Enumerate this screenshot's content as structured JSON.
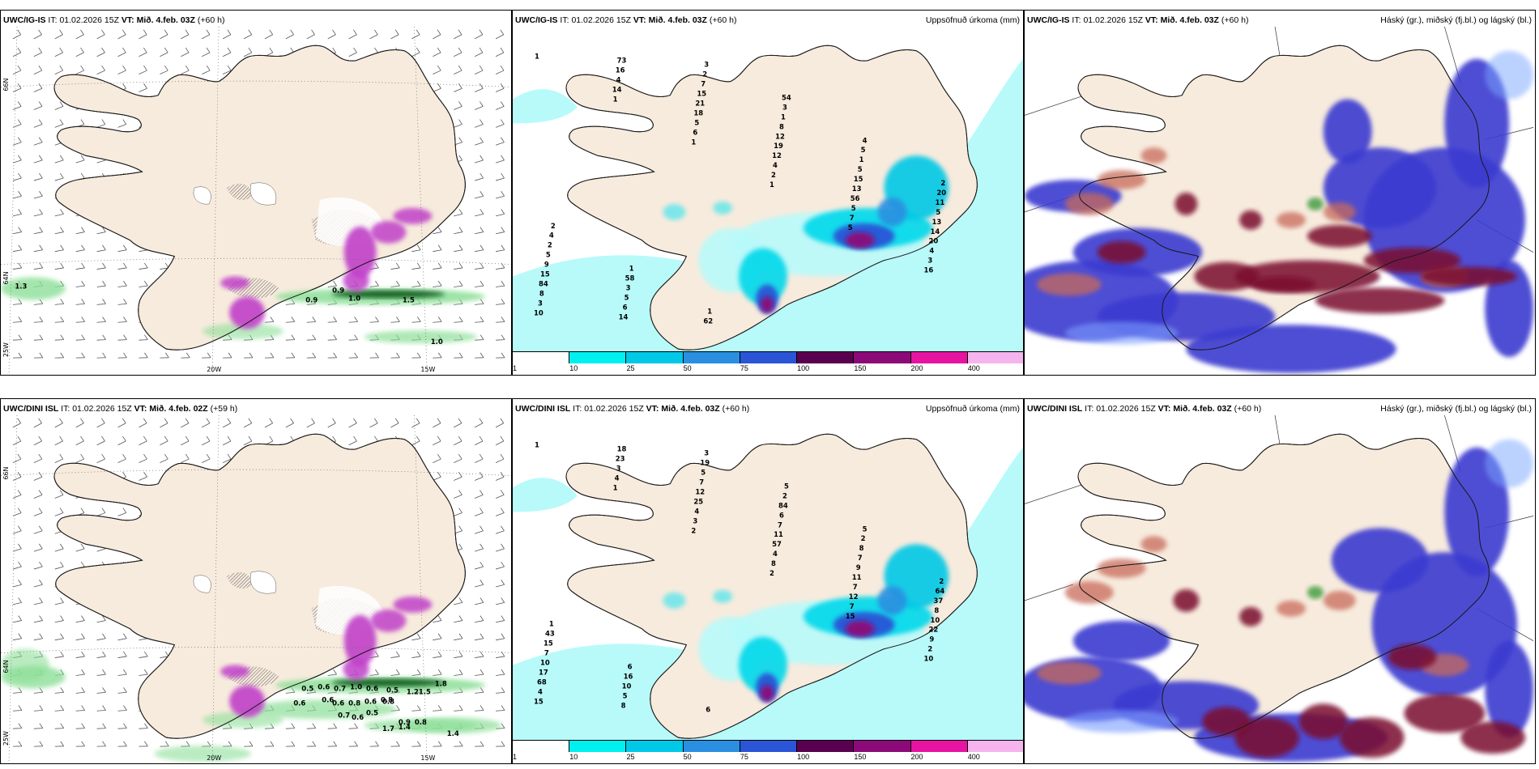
{
  "panels": [
    {
      "id": "p1",
      "model": "UWC/IG-IS",
      "it_label": "IT:",
      "it": "01.02.2026 15Z",
      "vt_label": "VT:",
      "vt": "Mið. 4.feb. 03Z",
      "lead": "(+60 h)",
      "right": ""
    },
    {
      "id": "p2",
      "model": "UWC/IG-IS",
      "it_label": "IT:",
      "it": "01.02.2026 15Z",
      "vt_label": "VT:",
      "vt": "Mið. 4.feb. 03Z",
      "lead": "(+60 h)",
      "right": "Uppsöfnuð úrkoma (mm)"
    },
    {
      "id": "p3",
      "model": "UWC/IG-IS",
      "it_label": "IT:",
      "it": "01.02.2026 15Z",
      "vt_label": "VT:",
      "vt": "Mið. 4.feb. 03Z",
      "lead": "(+60 h)",
      "right": "Háský (gr.), miðský (fj.bl.) og lágský (bl.)"
    },
    {
      "id": "p4",
      "model": "UWC/DINI ISL",
      "it_label": "IT:",
      "it": "01.02.2026 15Z",
      "vt_label": "VT:",
      "vt": "Mið. 4.feb. 02Z",
      "lead": "(+59 h)",
      "right": ""
    },
    {
      "id": "p5",
      "model": "UWC/DINI ISL",
      "it_label": "IT:",
      "it": "01.02.2026 15Z",
      "vt_label": "VT:",
      "vt": "Mið. 4.feb. 03Z",
      "lead": "(+60 h)",
      "right": "Uppsöfnuð úrkoma (mm)"
    },
    {
      "id": "p6",
      "model": "UWC/DINI ISL",
      "it_label": "IT:",
      "it": "01.02.2026 15Z",
      "vt_label": "VT:",
      "vt": "Mið. 4.feb. 03Z",
      "lead": "(+60 h)",
      "right": "Háský (gr.), miðský (fj.bl.) og lágský (bl.)"
    }
  ],
  "axis_labels": {
    "lat66": "66N",
    "lat64": "64N",
    "lon25": "25W",
    "lon20": "20W",
    "lon15": "15W"
  },
  "colorbar": {
    "ticks": [
      "1",
      "10",
      "25",
      "50",
      "75",
      "100",
      "150",
      "200",
      "400"
    ],
    "colors": [
      "#ffffff",
      "#00f0f0",
      "#00c8e6",
      "#2a8fe0",
      "#2a55d6",
      "#5a0050",
      "#8c0a78",
      "#e614a0",
      "#f6b4ee"
    ]
  },
  "precip_labels_ig": [
    "1",
    "1",
    "1",
    "1",
    "5",
    "16",
    "10",
    "14",
    "6",
    "2",
    "7",
    "3",
    "3",
    "4",
    "5",
    "4",
    "5",
    "4",
    "8",
    "16",
    "18",
    "12",
    "56",
    "20",
    "84",
    "73",
    "21",
    "19",
    "13",
    "14",
    "15",
    "14",
    "15",
    "12",
    "15",
    "13",
    "9",
    "6",
    "7",
    "8",
    "5",
    "5",
    "5",
    "5",
    "2",
    "1",
    "1",
    "11",
    "2",
    "3",
    "3",
    "3",
    "5",
    "20",
    "4",
    "58",
    "62",
    "54",
    "4",
    "2",
    "2",
    "1",
    "1"
  ],
  "precip_labels_dini": [
    "1",
    "1",
    "2",
    "2",
    "15",
    "10",
    "15",
    "4",
    "3",
    "8",
    "7",
    "2",
    "4",
    "3",
    "4",
    "4",
    "12",
    "9",
    "68",
    "23",
    "25",
    "57",
    "7",
    "22",
    "17",
    "18",
    "12",
    "11",
    "11",
    "10",
    "10",
    "8",
    "7",
    "7",
    "9",
    "8",
    "7",
    "5",
    "5",
    "6",
    "7",
    "37",
    "15",
    "10",
    "19",
    "84",
    "8",
    "64",
    "43",
    "16",
    "3",
    "2",
    "2",
    "2",
    "1",
    "6",
    "6",
    "5",
    "5"
  ],
  "wind_labels_ig": [
    "1.3",
    "0.9",
    "0.9",
    "1.0",
    "1.5",
    "1.0"
  ],
  "wind_labels_dini": [
    "0.5",
    "0.6",
    "0.7",
    "1.0",
    "0.6",
    "0.5",
    "1.2",
    "1.5",
    "0.6",
    "0.8",
    "0.6",
    "0.8",
    "0.7",
    "0.6",
    "0.5",
    "0.8",
    "0.9",
    "0.8",
    "1.7",
    "1.4",
    "1.4",
    "0.6",
    "0.6",
    "1.8"
  ],
  "colors": {
    "land": "#f7ebdd",
    "coast": "#1a1a1a",
    "green": "#8ddf98",
    "darkgreen": "#0c5a1a",
    "purple": "#c040c8",
    "cyan": "#b8fafa",
    "high": "#7a0c2e",
    "mid": "#c86a5a",
    "low": "#3a3ad0"
  }
}
